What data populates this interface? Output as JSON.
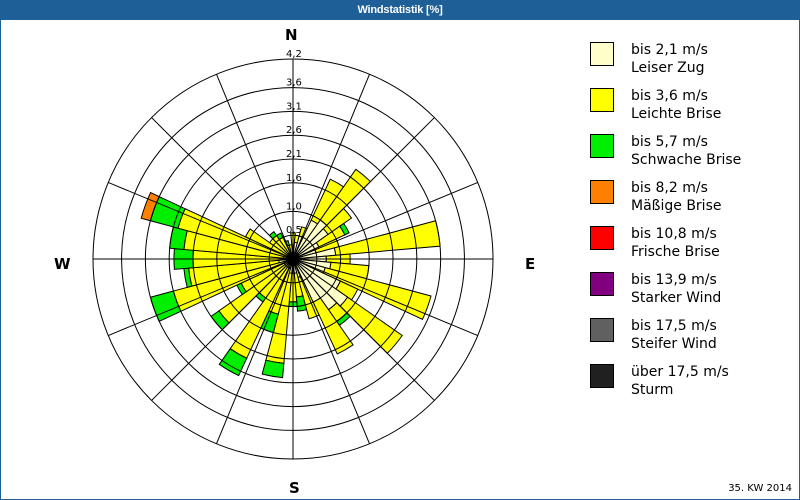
{
  "title": "Windstatistik [%]",
  "footer": "35. KW 2014",
  "compass": {
    "n": "N",
    "e": "E",
    "s": "S",
    "w": "W"
  },
  "legend": [
    {
      "range": "bis 2,1 m/s",
      "name": "Leiser Zug",
      "color": "#ffffcc"
    },
    {
      "range": "bis 3,6 m/s",
      "name": "Leichte Brise",
      "color": "#ffff00"
    },
    {
      "range": "bis 5,7 m/s",
      "name": "Schwache Brise",
      "color": "#00ee00"
    },
    {
      "range": "bis 8,2 m/s",
      "name": "Mäßige Brise",
      "color": "#ff8000"
    },
    {
      "range": "bis 10,8 m/s",
      "name": "Frische Brise",
      "color": "#ff0000"
    },
    {
      "range": "bis 13,9 m/s",
      "name": "Starker Wind",
      "color": "#800080"
    },
    {
      "range": "bis 17,5 m/s",
      "name": "Steifer Wind",
      "color": "#606060"
    },
    {
      "range": "über 17,5 m/s",
      "name": "Sturm",
      "color": "#202020"
    }
  ],
  "chart_data": {
    "type": "wind-rose",
    "title": "Windstatistik [%]",
    "radial_ticks": [
      "0,5",
      "1,0",
      "1,6",
      "2,1",
      "2,6",
      "3,1",
      "3,6",
      "4,2"
    ],
    "radial_tick_values": [
      0.5,
      1.0,
      1.6,
      2.1,
      2.6,
      3.1,
      3.6,
      4.2
    ],
    "rmax": 4.2,
    "sector_width_deg": 10,
    "series": [
      "Leiser Zug",
      "Leichte Brise",
      "Schwache Brise",
      "Mäßige Brise",
      "Frische Brise",
      "Starker Wind",
      "Steifer Wind",
      "Sturm"
    ],
    "directions_deg": [
      0,
      10,
      20,
      30,
      40,
      50,
      60,
      70,
      80,
      90,
      100,
      110,
      120,
      130,
      140,
      150,
      160,
      170,
      180,
      190,
      200,
      210,
      220,
      230,
      240,
      250,
      260,
      270,
      280,
      290,
      300,
      310,
      320,
      330,
      340,
      350
    ],
    "cumulative_percent": [
      [
        0.2,
        0.55,
        0.55,
        0.55
      ],
      [
        0.35,
        0.5,
        0.5,
        0.5
      ],
      [
        0.5,
        0.7,
        0.7,
        0.7
      ],
      [
        0.9,
        1.85,
        1.85,
        1.85
      ],
      [
        1.0,
        2.3,
        2.3,
        2.3
      ],
      [
        0.9,
        1.5,
        1.5,
        1.5
      ],
      [
        0.6,
        1.2,
        1.3,
        1.3
      ],
      [
        0.5,
        1.0,
        1.0,
        1.0
      ],
      [
        0.9,
        3.1,
        3.1,
        3.1
      ],
      [
        0.7,
        1.2,
        1.2,
        1.2
      ],
      [
        0.8,
        1.6,
        1.6,
        1.6
      ],
      [
        0.7,
        3.0,
        3.0,
        3.0
      ],
      [
        1.1,
        1.5,
        1.5,
        1.5
      ],
      [
        1.4,
        2.8,
        2.8,
        2.8
      ],
      [
        1.3,
        1.6,
        1.7,
        1.7
      ],
      [
        1.0,
        2.2,
        2.2,
        2.2
      ],
      [
        0.4,
        1.3,
        1.3,
        1.3
      ],
      [
        0.3,
        0.8,
        1.1,
        1.1
      ],
      [
        0.3,
        0.9,
        1.0,
        1.0
      ],
      [
        0.3,
        2.2,
        2.5,
        2.5
      ],
      [
        0.2,
        1.2,
        1.6,
        1.6
      ],
      [
        0.2,
        2.3,
        2.7,
        2.7
      ],
      [
        0.2,
        1.0,
        1.1,
        1.1
      ],
      [
        0.2,
        1.9,
        2.1,
        2.1
      ],
      [
        0.2,
        1.2,
        1.3,
        1.3
      ],
      [
        0.1,
        2.6,
        3.1,
        3.1
      ],
      [
        0.3,
        2.2,
        2.3,
        2.3
      ],
      [
        0.2,
        2.1,
        2.5,
        2.5
      ],
      [
        0.2,
        2.3,
        2.6,
        2.6
      ],
      [
        0.1,
        2.5,
        3.1,
        3.3
      ],
      [
        0.1,
        1.1,
        1.1,
        1.1
      ],
      [
        0.1,
        0.6,
        0.6,
        0.6
      ],
      [
        0.1,
        0.6,
        0.7,
        0.7
      ],
      [
        0.1,
        0.5,
        0.6,
        0.6
      ],
      [
        0.1,
        0.3,
        0.4,
        0.4
      ],
      [
        0.1,
        0.3,
        0.3,
        0.3
      ]
    ],
    "legend_position": "right"
  }
}
